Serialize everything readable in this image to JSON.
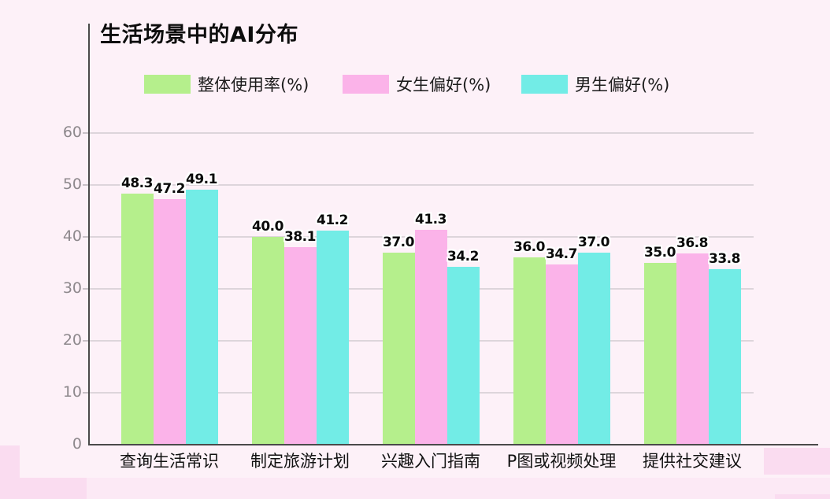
{
  "page": {
    "background": "#fdf1f8",
    "accent_pink": "#fadcf0"
  },
  "chart_data": {
    "type": "bar",
    "title": "生活场景中的AI分布",
    "categories": [
      "查询生活常识",
      "制定旅游计划",
      "兴趣入门指南",
      "P图或视频处理",
      "提供社交建议"
    ],
    "series": [
      {
        "name": "整体使用率(%)",
        "color": "#b5ef8c",
        "values": [
          48.3,
          40.0,
          37.0,
          36.0,
          35.0
        ]
      },
      {
        "name": "女生偏好(%)",
        "color": "#fbb3e9",
        "values": [
          47.2,
          38.1,
          41.3,
          34.7,
          36.8
        ]
      },
      {
        "name": "男生偏好(%)",
        "color": "#72ece6",
        "values": [
          49.1,
          41.2,
          34.2,
          37.0,
          33.8
        ]
      }
    ],
    "y_ticks": [
      0,
      10,
      20,
      30,
      40,
      50,
      60
    ],
    "ylim": [
      0,
      60
    ],
    "grid": true,
    "legend_position": "top",
    "value_labels": true,
    "value_label_format": "one-decimal"
  }
}
